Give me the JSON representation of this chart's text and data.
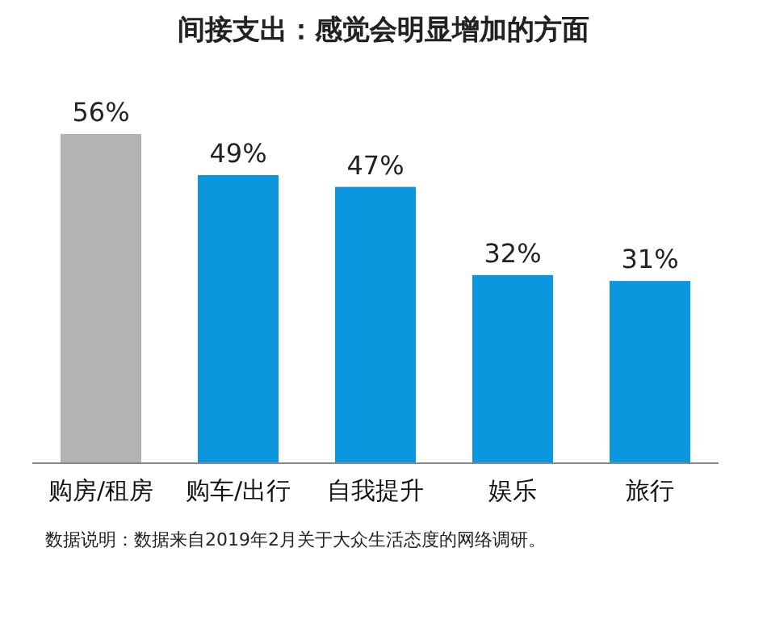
{
  "chart_data": {
    "type": "bar",
    "title": "间接支出：感觉会明显增加的方面",
    "categories": [
      "购房/租房",
      "购车/出行",
      "自我提升",
      "娱乐",
      "旅行"
    ],
    "values": [
      56,
      49,
      47,
      32,
      31
    ],
    "colors": [
      "#b3b3b3",
      "#0b96de",
      "#0b96de",
      "#0b96de",
      "#0b96de"
    ],
    "value_labels": [
      "56%",
      "49%",
      "47%",
      "32%",
      "31%"
    ],
    "annotations": [
      "数据说明：数据来自2019年2月关于大众生活态度的网络调研。"
    ]
  }
}
